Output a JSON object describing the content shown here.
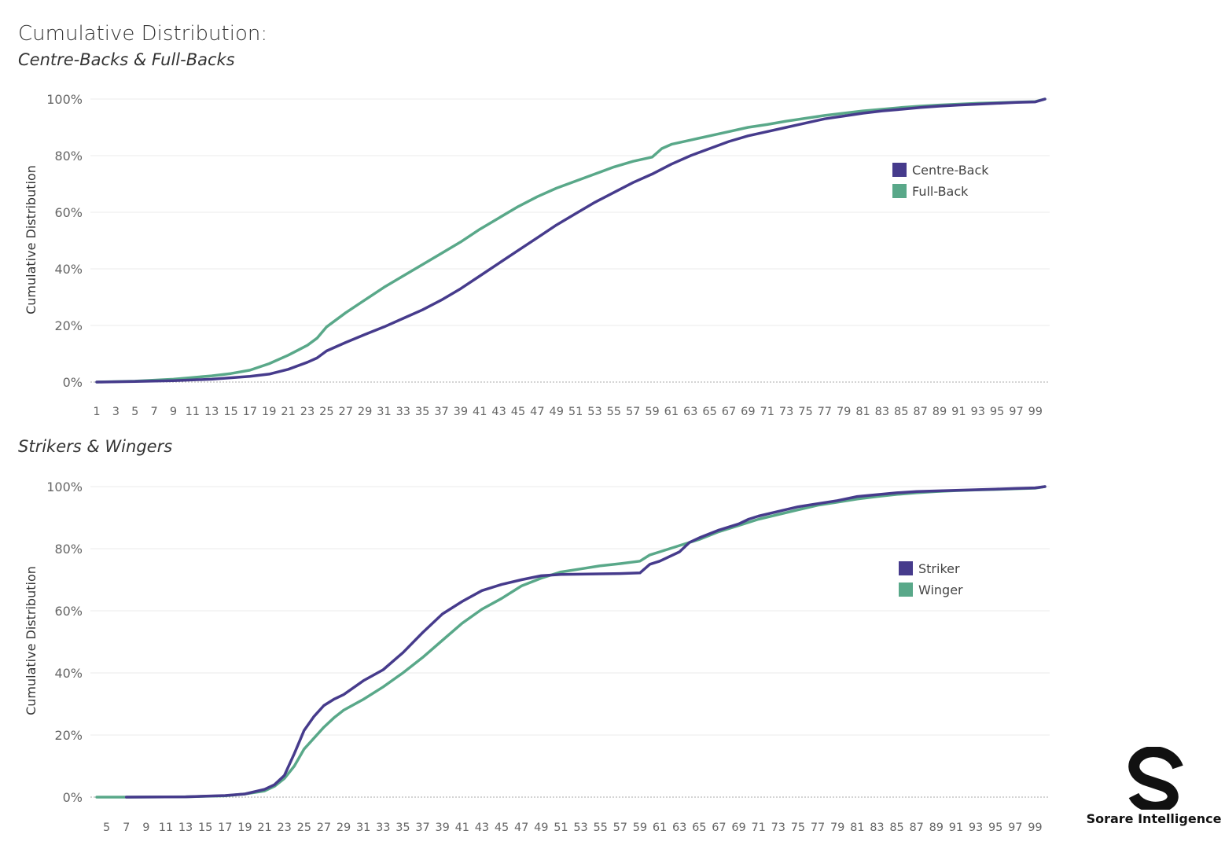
{
  "title": "Cumulative Distribution:",
  "logo": {
    "text": "Sorare Intelligence",
    "icon": "sorare-s-logo-icon"
  },
  "colors": {
    "primary": "#463b8c",
    "secondary": "#59a889",
    "grid": "#ebebeb",
    "zero": "#aaaaaa",
    "text": "#666666"
  },
  "chart_data": [
    {
      "type": "line",
      "subtitle": "Centre-Backs & Full-Backs",
      "ylabel": "Cumulative Distribution",
      "xlabel": "",
      "xlim": [
        1,
        100
      ],
      "ylim": [
        0,
        100
      ],
      "yticks": [
        "0%",
        "20%",
        "40%",
        "60%",
        "80%",
        "100%"
      ],
      "xticks": [
        1,
        3,
        5,
        7,
        9,
        11,
        13,
        15,
        17,
        19,
        21,
        23,
        25,
        27,
        29,
        31,
        33,
        35,
        37,
        39,
        41,
        43,
        45,
        47,
        49,
        51,
        53,
        55,
        57,
        59,
        61,
        63,
        65,
        67,
        69,
        71,
        73,
        75,
        77,
        79,
        81,
        83,
        85,
        87,
        89,
        91,
        93,
        95,
        97,
        99
      ],
      "legend_position": "right",
      "grid": true,
      "series": [
        {
          "name": "Centre-Back",
          "color": "#463b8c",
          "points": [
            [
              1,
              0
            ],
            [
              5,
              0.2
            ],
            [
              9,
              0.5
            ],
            [
              13,
              1
            ],
            [
              17,
              2
            ],
            [
              19,
              2.8
            ],
            [
              21,
              4.5
            ],
            [
              23,
              7
            ],
            [
              24,
              8.5
            ],
            [
              25,
              11
            ],
            [
              27,
              14
            ],
            [
              29,
              16.8
            ],
            [
              31,
              19.5
            ],
            [
              33,
              22.5
            ],
            [
              35,
              25.5
            ],
            [
              37,
              29
            ],
            [
              39,
              33
            ],
            [
              41,
              37.5
            ],
            [
              43,
              42
            ],
            [
              45,
              46.5
            ],
            [
              47,
              51
            ],
            [
              49,
              55.5
            ],
            [
              51,
              59.5
            ],
            [
              53,
              63.5
            ],
            [
              55,
              67
            ],
            [
              57,
              70.5
            ],
            [
              59,
              73.5
            ],
            [
              61,
              77
            ],
            [
              63,
              80
            ],
            [
              65,
              82.5
            ],
            [
              67,
              85
            ],
            [
              69,
              87
            ],
            [
              71,
              88.5
            ],
            [
              73,
              90
            ],
            [
              75,
              91.5
            ],
            [
              77,
              93
            ],
            [
              79,
              94
            ],
            [
              81,
              95
            ],
            [
              83,
              95.8
            ],
            [
              85,
              96.4
            ],
            [
              87,
              97
            ],
            [
              89,
              97.5
            ],
            [
              91,
              97.9
            ],
            [
              93,
              98.2
            ],
            [
              95,
              98.5
            ],
            [
              97,
              98.8
            ],
            [
              99,
              99
            ],
            [
              100,
              100
            ]
          ]
        },
        {
          "name": "Full-Back",
          "color": "#59a889",
          "points": [
            [
              1,
              0
            ],
            [
              5,
              0.3
            ],
            [
              9,
              1
            ],
            [
              13,
              2.2
            ],
            [
              15,
              3
            ],
            [
              17,
              4.2
            ],
            [
              19,
              6.5
            ],
            [
              21,
              9.5
            ],
            [
              23,
              13
            ],
            [
              24,
              15.5
            ],
            [
              25,
              19.5
            ],
            [
              27,
              24.5
            ],
            [
              29,
              29
            ],
            [
              31,
              33.5
            ],
            [
              33,
              37.5
            ],
            [
              35,
              41.5
            ],
            [
              37,
              45.5
            ],
            [
              39,
              49.5
            ],
            [
              41,
              54
            ],
            [
              43,
              58
            ],
            [
              45,
              62
            ],
            [
              47,
              65.5
            ],
            [
              49,
              68.5
            ],
            [
              51,
              71
            ],
            [
              53,
              73.5
            ],
            [
              55,
              76
            ],
            [
              57,
              78
            ],
            [
              59,
              79.5
            ],
            [
              60,
              82.5
            ],
            [
              61,
              84
            ],
            [
              63,
              85.5
            ],
            [
              65,
              87
            ],
            [
              67,
              88.5
            ],
            [
              69,
              90
            ],
            [
              71,
              91
            ],
            [
              73,
              92.2
            ],
            [
              75,
              93.2
            ],
            [
              77,
              94.2
            ],
            [
              79,
              95
            ],
            [
              81,
              95.8
            ],
            [
              83,
              96.4
            ],
            [
              85,
              97
            ],
            [
              87,
              97.5
            ],
            [
              89,
              97.9
            ],
            [
              91,
              98.2
            ],
            [
              93,
              98.5
            ],
            [
              95,
              98.7
            ],
            [
              97,
              98.9
            ],
            [
              99,
              99.1
            ],
            [
              100,
              100
            ]
          ]
        }
      ]
    },
    {
      "type": "line",
      "subtitle": "Strikers & Wingers",
      "ylabel": "Cumulative Distribution",
      "xlabel": "",
      "xlim": [
        4,
        100
      ],
      "ylim": [
        0,
        100
      ],
      "yticks": [
        "0%",
        "20%",
        "40%",
        "60%",
        "80%",
        "100%"
      ],
      "xticks": [
        5,
        7,
        9,
        11,
        13,
        15,
        17,
        19,
        21,
        23,
        25,
        27,
        29,
        31,
        33,
        35,
        37,
        39,
        41,
        43,
        45,
        47,
        49,
        51,
        53,
        55,
        57,
        59,
        61,
        63,
        65,
        67,
        69,
        71,
        73,
        75,
        77,
        79,
        81,
        83,
        85,
        87,
        89,
        91,
        93,
        95,
        97,
        99
      ],
      "legend_position": "right",
      "grid": true,
      "series": [
        {
          "name": "Striker",
          "color": "#463b8c",
          "points": [
            [
              7,
              0
            ],
            [
              13,
              0.1
            ],
            [
              17,
              0.5
            ],
            [
              19,
              1
            ],
            [
              21,
              2.5
            ],
            [
              22,
              4
            ],
            [
              23,
              7
            ],
            [
              24,
              14
            ],
            [
              25,
              21.5
            ],
            [
              26,
              26
            ],
            [
              27,
              29.5
            ],
            [
              28,
              31.5
            ],
            [
              29,
              33
            ],
            [
              31,
              37.5
            ],
            [
              33,
              41
            ],
            [
              35,
              46.5
            ],
            [
              37,
              53
            ],
            [
              39,
              59
            ],
            [
              41,
              63
            ],
            [
              43,
              66.5
            ],
            [
              45,
              68.5
            ],
            [
              47,
              70
            ],
            [
              49,
              71.3
            ],
            [
              51,
              71.7
            ],
            [
              53,
              71.8
            ],
            [
              55,
              71.9
            ],
            [
              57,
              72
            ],
            [
              59,
              72.2
            ],
            [
              60,
              75
            ],
            [
              61,
              76
            ],
            [
              63,
              79
            ],
            [
              64,
              82
            ],
            [
              65,
              83.5
            ],
            [
              67,
              86
            ],
            [
              69,
              88
            ],
            [
              70,
              89.5
            ],
            [
              71,
              90.5
            ],
            [
              73,
              92
            ],
            [
              75,
              93.5
            ],
            [
              77,
              94.5
            ],
            [
              79,
              95.5
            ],
            [
              81,
              96.8
            ],
            [
              83,
              97.4
            ],
            [
              85,
              98
            ],
            [
              87,
              98.4
            ],
            [
              89,
              98.6
            ],
            [
              91,
              98.8
            ],
            [
              93,
              99
            ],
            [
              95,
              99.2
            ],
            [
              97,
              99.4
            ],
            [
              99,
              99.6
            ],
            [
              100,
              100
            ]
          ]
        },
        {
          "name": "Winger",
          "color": "#59a889",
          "points": [
            [
              4,
              0
            ],
            [
              7,
              0
            ],
            [
              13,
              0.1
            ],
            [
              17,
              0.4
            ],
            [
              19,
              1
            ],
            [
              21,
              2
            ],
            [
              22,
              3.5
            ],
            [
              23,
              6
            ],
            [
              24,
              10
            ],
            [
              25,
              15.5
            ],
            [
              27,
              22.5
            ],
            [
              28,
              25.5
            ],
            [
              29,
              28
            ],
            [
              31,
              31.5
            ],
            [
              33,
              35.5
            ],
            [
              35,
              40
            ],
            [
              37,
              45
            ],
            [
              39,
              50.5
            ],
            [
              41,
              56
            ],
            [
              43,
              60.5
            ],
            [
              45,
              64
            ],
            [
              47,
              68
            ],
            [
              49,
              70.5
            ],
            [
              51,
              72.5
            ],
            [
              53,
              73.5
            ],
            [
              55,
              74.5
            ],
            [
              57,
              75.2
            ],
            [
              59,
              76
            ],
            [
              60,
              78
            ],
            [
              61,
              79
            ],
            [
              63,
              81
            ],
            [
              65,
              83
            ],
            [
              67,
              85.5
            ],
            [
              69,
              87.5
            ],
            [
              71,
              89.5
            ],
            [
              73,
              91
            ],
            [
              75,
              92.5
            ],
            [
              77,
              94
            ],
            [
              79,
              95
            ],
            [
              81,
              96
            ],
            [
              83,
              96.8
            ],
            [
              85,
              97.5
            ],
            [
              87,
              98
            ],
            [
              89,
              98.4
            ],
            [
              91,
              98.7
            ],
            [
              93,
              98.9
            ],
            [
              95,
              99.1
            ],
            [
              97,
              99.3
            ],
            [
              99,
              99.5
            ],
            [
              100,
              100
            ]
          ]
        }
      ]
    }
  ]
}
